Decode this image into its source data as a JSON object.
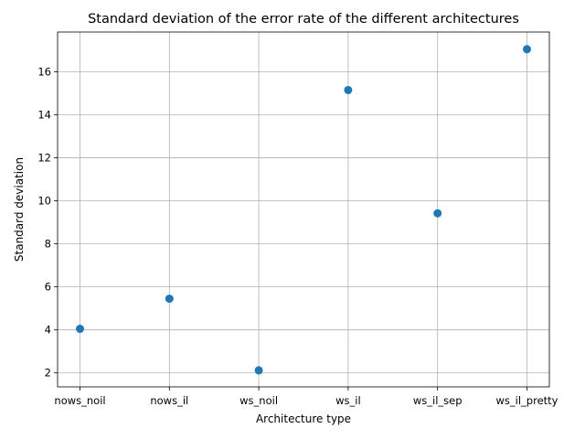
{
  "chart_data": {
    "type": "scatter",
    "title": "Standard deviation of the error rate of the different architectures",
    "xlabel": "Architecture type",
    "ylabel": "Standard deviation",
    "categories": [
      "nows_noil",
      "nows_il",
      "ws_noil",
      "ws_il",
      "ws_il_sep",
      "ws_il_pretty"
    ],
    "values": [
      4.05,
      5.45,
      2.12,
      15.15,
      9.42,
      17.05
    ],
    "yticks": [
      2,
      4,
      6,
      8,
      10,
      12,
      14,
      16
    ],
    "ylim": [
      1.35,
      17.85
    ],
    "grid": true,
    "marker_color": "#1f77b4"
  }
}
